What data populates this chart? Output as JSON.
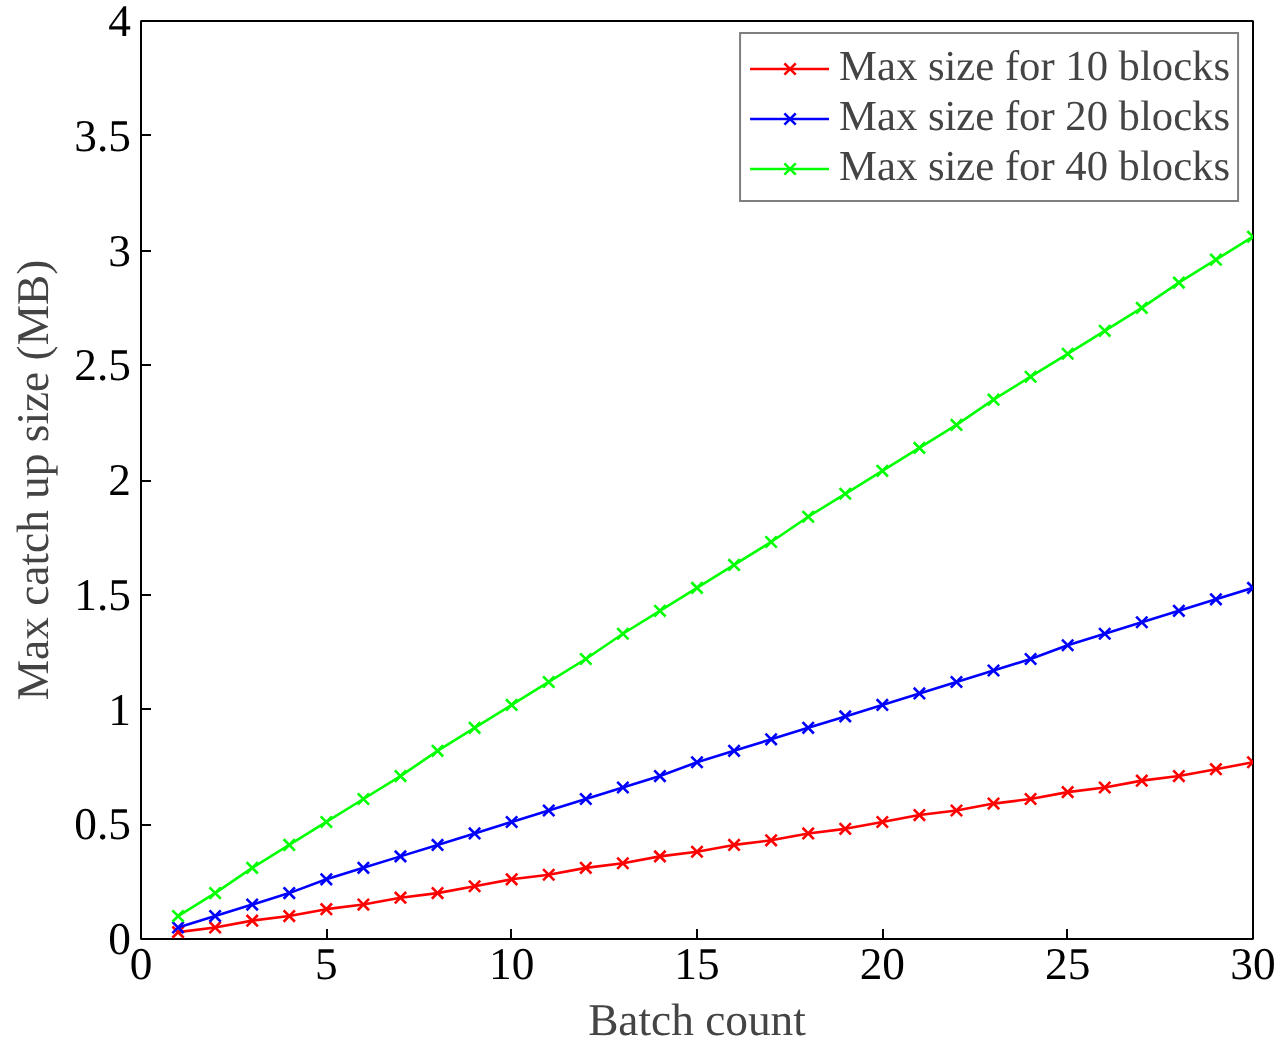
{
  "chart_data": {
    "type": "line",
    "xlabel": "Batch count",
    "ylabel": "Max catch up size (MB)",
    "x": [
      1,
      2,
      3,
      4,
      5,
      6,
      7,
      8,
      9,
      10,
      11,
      12,
      13,
      14,
      15,
      16,
      17,
      18,
      19,
      20,
      21,
      22,
      23,
      24,
      25,
      26,
      27,
      28,
      29,
      30
    ],
    "series": [
      {
        "name": "Max size for 10 blocks",
        "color": "#ff0000",
        "values": [
          0.03,
          0.05,
          0.08,
          0.1,
          0.13,
          0.15,
          0.18,
          0.2,
          0.23,
          0.26,
          0.28,
          0.31,
          0.33,
          0.36,
          0.38,
          0.41,
          0.43,
          0.46,
          0.48,
          0.51,
          0.54,
          0.56,
          0.59,
          0.61,
          0.64,
          0.66,
          0.69,
          0.71,
          0.74,
          0.77
        ]
      },
      {
        "name": "Max size for 20 blocks",
        "color": "#0000ff",
        "values": [
          0.05,
          0.1,
          0.15,
          0.2,
          0.26,
          0.31,
          0.36,
          0.41,
          0.46,
          0.51,
          0.56,
          0.61,
          0.66,
          0.71,
          0.77,
          0.82,
          0.87,
          0.92,
          0.97,
          1.02,
          1.07,
          1.12,
          1.17,
          1.22,
          1.28,
          1.33,
          1.38,
          1.43,
          1.48,
          1.53
        ]
      },
      {
        "name": "Max size for 40 blocks",
        "color": "#00ff00",
        "values": [
          0.1,
          0.2,
          0.31,
          0.41,
          0.51,
          0.61,
          0.71,
          0.82,
          0.92,
          1.02,
          1.12,
          1.22,
          1.33,
          1.43,
          1.53,
          1.63,
          1.73,
          1.84,
          1.94,
          2.04,
          2.14,
          2.24,
          2.35,
          2.45,
          2.55,
          2.65,
          2.75,
          2.86,
          2.96,
          3.06
        ]
      }
    ],
    "xlim": [
      0,
      30
    ],
    "xticks": [
      0,
      5,
      10,
      15,
      20,
      25,
      30
    ],
    "ylim": [
      0,
      4
    ],
    "yticks": [
      0,
      0.5,
      1,
      1.5,
      2,
      2.5,
      3,
      3.5,
      4
    ],
    "marker": "cross",
    "line_style": "solid",
    "legend": "top right",
    "grid": false
  }
}
